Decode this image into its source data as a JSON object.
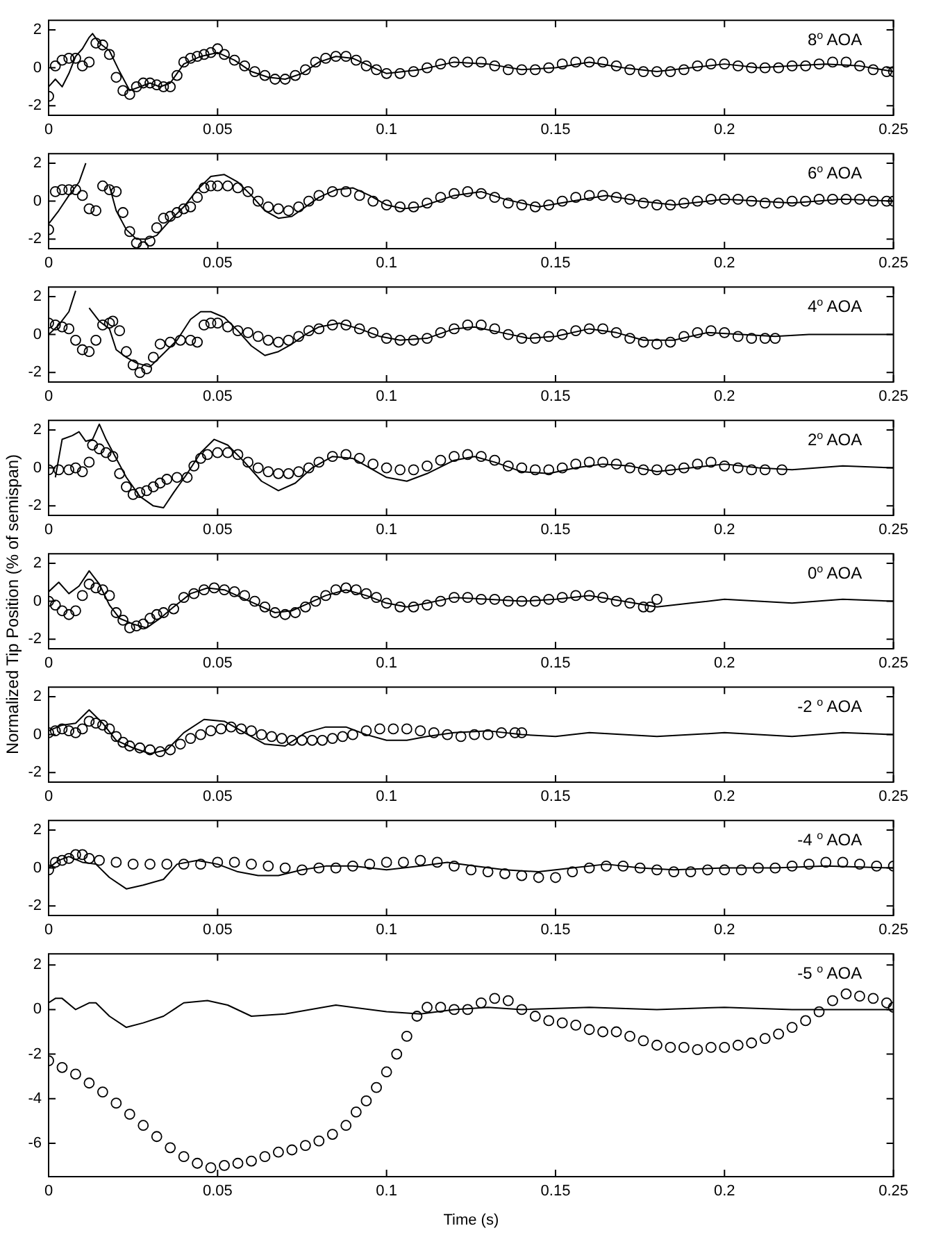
{
  "chart_data": [
    {
      "type": "line",
      "annotations": [
        "8$^{o}$ AOA"
      ],
      "xlim": [
        0,
        0.25
      ],
      "xticks": [
        0,
        0.05,
        0.1,
        0.15,
        0.2,
        0.25
      ],
      "ylim": [
        -2.5,
        2.5
      ],
      "yticks": [
        -2,
        0,
        2
      ],
      "series": [
        {
          "type": "line",
          "color": "#000000",
          "marker": "none",
          "line_style": "solid",
          "x": [
            0,
            0.002,
            0.004,
            0.006,
            0.008,
            0.01,
            0.012,
            0.013,
            0.015,
            0.018,
            0.021,
            0.024,
            0.027,
            0.03,
            0.033,
            0.036,
            0.04,
            0.045,
            0.05,
            0.055,
            0.06,
            0.065,
            0.07,
            0.075,
            0.08,
            0.085,
            0.09,
            0.095,
            0.1,
            0.11,
            0.12,
            0.13,
            0.14,
            0.15,
            0.16,
            0.17,
            0.18,
            0.19,
            0.2,
            0.21,
            0.22,
            0.23,
            0.24,
            0.25
          ],
          "values": [
            -1.0,
            -0.6,
            -1.0,
            -0.3,
            0.6,
            1.0,
            1.6,
            1.8,
            1.3,
            0.9,
            -0.2,
            -1.2,
            -1.0,
            -0.8,
            -1.0,
            -0.8,
            0.2,
            0.6,
            0.8,
            0.4,
            -0.2,
            -0.5,
            -0.6,
            -0.3,
            0.3,
            0.6,
            0.5,
            0.1,
            -0.3,
            -0.1,
            0.3,
            0.2,
            -0.1,
            0,
            0.3,
            0,
            -0.2,
            0,
            0.2,
            0,
            0.1,
            0.2,
            0.1,
            -0.2
          ]
        },
        {
          "type": "scatter",
          "color": "#000000",
          "marker": "circle",
          "x": [
            0,
            0.002,
            0.004,
            0.006,
            0.008,
            0.01,
            0.012,
            0.014,
            0.016,
            0.018,
            0.02,
            0.022,
            0.024,
            0.026,
            0.028,
            0.03,
            0.032,
            0.034,
            0.036,
            0.038,
            0.04,
            0.042,
            0.044,
            0.046,
            0.048,
            0.05,
            0.052,
            0.055,
            0.058,
            0.061,
            0.064,
            0.067,
            0.07,
            0.073,
            0.076,
            0.079,
            0.082,
            0.085,
            0.088,
            0.091,
            0.094,
            0.097,
            0.1,
            0.104,
            0.108,
            0.112,
            0.116,
            0.12,
            0.124,
            0.128,
            0.132,
            0.136,
            0.14,
            0.144,
            0.148,
            0.152,
            0.156,
            0.16,
            0.164,
            0.168,
            0.172,
            0.176,
            0.18,
            0.184,
            0.188,
            0.192,
            0.196,
            0.2,
            0.204,
            0.208,
            0.212,
            0.216,
            0.22,
            0.224,
            0.228,
            0.232,
            0.236,
            0.24,
            0.244,
            0.248,
            0.25
          ],
          "values": [
            -1.5,
            0.1,
            0.4,
            0.5,
            0.5,
            0.1,
            0.3,
            1.3,
            1.2,
            0.7,
            -0.5,
            -1.2,
            -1.4,
            -1.0,
            -0.8,
            -0.8,
            -0.9,
            -1.0,
            -1.0,
            -0.4,
            0.3,
            0.5,
            0.6,
            0.7,
            0.8,
            1.0,
            0.7,
            0.4,
            0.1,
            -0.2,
            -0.4,
            -0.6,
            -0.6,
            -0.4,
            -0.1,
            0.3,
            0.5,
            0.6,
            0.6,
            0.4,
            0.1,
            -0.1,
            -0.3,
            -0.3,
            -0.2,
            0,
            0.2,
            0.3,
            0.3,
            0.3,
            0.1,
            -0.1,
            -0.1,
            -0.1,
            0,
            0.2,
            0.3,
            0.3,
            0.3,
            0.1,
            -0.1,
            -0.2,
            -0.2,
            -0.2,
            -0.1,
            0.1,
            0.2,
            0.2,
            0.1,
            0,
            0,
            0,
            0.1,
            0.1,
            0.2,
            0.3,
            0.3,
            0.1,
            -0.1,
            -0.2,
            -0.2
          ]
        }
      ]
    },
    {
      "type": "line",
      "annotations": [
        "6$^{o}$ AOA"
      ],
      "xlim": [
        0,
        0.25
      ],
      "xticks": [
        0,
        0.05,
        0.1,
        0.15,
        0.2,
        0.25
      ],
      "ylim": [
        -2.5,
        2.5
      ],
      "yticks": [
        -2,
        0,
        2
      ],
      "series": [
        {
          "type": "line",
          "color": "#000000",
          "marker": "none",
          "line_style": "solid",
          "x": [
            0,
            0.003,
            0.006,
            0.009,
            0.011,
            0.012,
            0.016,
            0.018,
            0.02,
            0.023,
            0.026,
            0.029,
            0.032,
            0.036,
            0.04,
            0.044,
            0.048,
            0.052,
            0.056,
            0.06,
            0.064,
            0.068,
            0.072,
            0.076,
            0.08,
            0.085,
            0.09,
            0.095,
            0.1,
            0.105,
            0.11,
            0.12,
            0.128,
            0.135,
            0.145,
            0.155,
            0.165,
            0.175,
            0.185,
            0.2,
            0.21,
            0.22,
            0.235,
            0.25
          ],
          "values": [
            -1.2,
            -0.5,
            0.3,
            1.0,
            2.0,
            null,
            null,
            0.8,
            -0.5,
            -1.5,
            -2.0,
            -2.0,
            -1.8,
            -1.0,
            -0.3,
            0.6,
            1.3,
            1.4,
            1.0,
            0.3,
            -0.5,
            -0.9,
            -0.8,
            -0.3,
            0.2,
            0.6,
            0.7,
            0.3,
            -0.2,
            -0.4,
            -0.3,
            0.3,
            0.5,
            0.1,
            -0.3,
            0,
            0.3,
            0,
            -0.2,
            0.1,
            0,
            -0.1,
            0.1,
            0
          ]
        },
        {
          "type": "scatter",
          "color": "#000000",
          "marker": "circle",
          "x": [
            0,
            0.002,
            0.004,
            0.006,
            0.008,
            0.01,
            0.012,
            0.014,
            0.016,
            0.018,
            0.02,
            0.022,
            0.024,
            0.026,
            0.028,
            0.03,
            0.032,
            0.034,
            0.036,
            0.038,
            0.04,
            0.042,
            0.044,
            0.046,
            0.048,
            0.05,
            0.053,
            0.056,
            0.059,
            0.062,
            0.065,
            0.068,
            0.071,
            0.074,
            0.077,
            0.08,
            0.084,
            0.088,
            0.092,
            0.096,
            0.1,
            0.104,
            0.108,
            0.112,
            0.116,
            0.12,
            0.124,
            0.128,
            0.132,
            0.136,
            0.14,
            0.144,
            0.148,
            0.152,
            0.156,
            0.16,
            0.164,
            0.168,
            0.172,
            0.176,
            0.18,
            0.184,
            0.188,
            0.192,
            0.196,
            0.2,
            0.204,
            0.208,
            0.212,
            0.216,
            0.22,
            0.224,
            0.228,
            0.232,
            0.236,
            0.24,
            0.244,
            0.248,
            0.25
          ],
          "values": [
            -1.5,
            0.5,
            0.6,
            0.6,
            0.6,
            0.3,
            -0.4,
            -0.5,
            0.8,
            0.6,
            0.5,
            -0.6,
            -1.6,
            -2.2,
            -2.4,
            -2.1,
            -1.4,
            -0.9,
            -0.8,
            -0.6,
            -0.4,
            -0.3,
            0.2,
            0.7,
            0.8,
            0.8,
            0.8,
            0.7,
            0.5,
            0,
            -0.3,
            -0.4,
            -0.5,
            -0.3,
            0,
            0.3,
            0.5,
            0.5,
            0.3,
            0,
            -0.2,
            -0.3,
            -0.3,
            -0.1,
            0.2,
            0.4,
            0.5,
            0.4,
            0.2,
            -0.1,
            -0.2,
            -0.3,
            -0.2,
            0,
            0.2,
            0.3,
            0.3,
            0.2,
            0.1,
            -0.1,
            -0.2,
            -0.2,
            -0.1,
            0,
            0.1,
            0.1,
            0.1,
            0,
            -0.1,
            -0.1,
            0,
            0,
            0.1,
            0.1,
            0.1,
            0.1,
            0,
            0,
            0
          ]
        }
      ]
    },
    {
      "type": "line",
      "annotations": [
        "4$^{o}$ AOA"
      ],
      "xlim": [
        0,
        0.25
      ],
      "xticks": [
        0,
        0.05,
        0.1,
        0.15,
        0.2,
        0.25
      ],
      "ylim": [
        -2.5,
        2.5
      ],
      "yticks": [
        -2,
        0,
        2
      ],
      "series": [
        {
          "type": "line",
          "color": "#000000",
          "marker": "none",
          "line_style": "solid",
          "x": [
            0,
            0.003,
            0.006,
            0.008,
            0.01,
            0.012,
            0.015,
            0.018,
            0.02,
            0.023,
            0.026,
            0.03,
            0.034,
            0.038,
            0.042,
            0.045,
            0.048,
            0.052,
            0.056,
            0.06,
            0.064,
            0.068,
            0.072,
            0.076,
            0.08,
            0.086,
            0.092,
            0.098,
            0.104,
            0.112,
            0.12,
            0.126,
            0.134,
            0.142,
            0.15,
            0.16,
            0.168,
            0.176,
            0.185,
            0.195,
            0.205,
            0.215,
            0.225,
            0.235,
            0.25
          ],
          "values": [
            0,
            0.5,
            1.2,
            2.3,
            null,
            1.4,
            0.7,
            0.3,
            -0.8,
            -1.2,
            -1.5,
            -1.7,
            -1.0,
            -0.3,
            0.8,
            1.2,
            1.2,
            0.9,
            0.2,
            -0.6,
            -1.1,
            -0.9,
            -0.5,
            0,
            0.4,
            0.6,
            0.3,
            -0.1,
            -0.3,
            -0.2,
            0.3,
            0.4,
            0.1,
            -0.2,
            -0.1,
            0.3,
            0.1,
            -0.3,
            -0.3,
            0.1,
            0,
            -0.1,
            0,
            0,
            0
          ]
        },
        {
          "type": "scatter",
          "color": "#000000",
          "marker": "circle",
          "x": [
            0,
            0.002,
            0.004,
            0.006,
            0.008,
            0.01,
            0.012,
            0.014,
            0.016,
            0.018,
            0.019,
            0.021,
            0.023,
            0.025,
            0.027,
            0.029,
            0.031,
            0.033,
            0.036,
            0.039,
            0.042,
            0.044,
            0.046,
            0.048,
            0.05,
            0.053,
            0.056,
            0.059,
            0.062,
            0.065,
            0.068,
            0.071,
            0.074,
            0.077,
            0.08,
            0.084,
            0.088,
            0.092,
            0.096,
            0.1,
            0.104,
            0.108,
            0.112,
            0.116,
            0.12,
            0.124,
            0.128,
            0.132,
            0.136,
            0.14,
            0.144,
            0.148,
            0.152,
            0.156,
            0.16,
            0.164,
            0.168,
            0.172,
            0.176,
            0.18,
            0.184,
            0.188,
            0.192,
            0.196,
            0.2,
            0.204,
            0.208,
            0.212,
            0.215
          ],
          "values": [
            0.6,
            0.5,
            0.4,
            0.3,
            -0.3,
            -0.8,
            -0.9,
            -0.3,
            0.5,
            0.6,
            0.7,
            0.2,
            -0.9,
            -1.6,
            -2.0,
            -1.8,
            -1.2,
            -0.5,
            -0.4,
            -0.3,
            -0.3,
            -0.4,
            0.5,
            0.6,
            0.6,
            0.4,
            0.2,
            0.1,
            -0.1,
            -0.3,
            -0.4,
            -0.3,
            -0.1,
            0.2,
            0.3,
            0.5,
            0.5,
            0.3,
            0.1,
            -0.2,
            -0.3,
            -0.3,
            -0.2,
            0.1,
            0.3,
            0.5,
            0.5,
            0.3,
            0,
            -0.2,
            -0.2,
            -0.1,
            0,
            0.2,
            0.3,
            0.3,
            0.1,
            -0.2,
            -0.4,
            -0.5,
            -0.4,
            -0.1,
            0.1,
            0.2,
            0.1,
            -0.1,
            -0.2,
            -0.2,
            -0.2
          ]
        }
      ]
    },
    {
      "type": "line",
      "annotations": [
        "2$^{o}$ AOA"
      ],
      "xlim": [
        0,
        0.25
      ],
      "xticks": [
        0,
        0.05,
        0.1,
        0.15,
        0.2,
        0.25
      ],
      "ylim": [
        -2.5,
        2.5
      ],
      "yticks": [
        -2,
        0,
        2
      ],
      "series": [
        {
          "type": "line",
          "color": "#000000",
          "marker": "none",
          "line_style": "solid",
          "x": [
            0.002,
            0.004,
            0.007,
            0.009,
            0.011,
            0.013,
            0.015,
            0.017,
            0.02,
            0.023,
            0.027,
            0.031,
            0.034,
            0.037,
            0.041,
            0.045,
            0.049,
            0.053,
            0.058,
            0.063,
            0.068,
            0.073,
            0.078,
            0.084,
            0.09,
            0.096,
            0.1,
            0.106,
            0.112,
            0.12,
            0.126,
            0.132,
            0.14,
            0.148,
            0.156,
            0.164,
            0.172,
            0.18,
            0.19,
            0.2,
            0.21,
            0.22,
            0.235,
            0.25
          ],
          "values": [
            -0.5,
            1.5,
            1.7,
            1.9,
            1.4,
            1.5,
            2.3,
            1.5,
            0.5,
            -0.5,
            -1.5,
            -2.0,
            -2.1,
            -1.3,
            -0.3,
            0.8,
            1.5,
            1.2,
            0.3,
            -0.7,
            -1.2,
            -0.8,
            0,
            0.6,
            0.5,
            -0.1,
            -0.5,
            -0.7,
            -0.3,
            0.4,
            0.6,
            0.3,
            -0.2,
            -0.3,
            0,
            0.2,
            0.1,
            -0.2,
            0,
            0.2,
            0,
            -0.1,
            0.1,
            0
          ]
        },
        {
          "type": "scatter",
          "color": "#000000",
          "marker": "circle",
          "x": [
            0,
            0.003,
            0.006,
            0.008,
            0.01,
            0.012,
            0.013,
            0.015,
            0.017,
            0.019,
            0.021,
            0.023,
            0.025,
            0.027,
            0.029,
            0.031,
            0.033,
            0.035,
            0.038,
            0.041,
            0.043,
            0.045,
            0.047,
            0.05,
            0.053,
            0.056,
            0.059,
            0.062,
            0.065,
            0.068,
            0.071,
            0.074,
            0.077,
            0.08,
            0.084,
            0.088,
            0.092,
            0.096,
            0.1,
            0.104,
            0.108,
            0.112,
            0.116,
            0.12,
            0.124,
            0.128,
            0.132,
            0.136,
            0.14,
            0.144,
            0.148,
            0.152,
            0.156,
            0.16,
            0.164,
            0.168,
            0.172,
            0.176,
            0.18,
            0.184,
            0.188,
            0.192,
            0.196,
            0.2,
            0.204,
            0.208,
            0.212,
            0.217
          ],
          "values": [
            -0.1,
            -0.1,
            -0.1,
            0,
            -0.2,
            0.3,
            1.2,
            1.0,
            0.8,
            0.6,
            -0.3,
            -1.0,
            -1.4,
            -1.3,
            -1.2,
            -1.0,
            -0.8,
            -0.6,
            -0.5,
            -0.5,
            0.1,
            0.5,
            0.7,
            0.8,
            0.8,
            0.7,
            0.3,
            0,
            -0.2,
            -0.3,
            -0.3,
            -0.2,
            0,
            0.3,
            0.6,
            0.7,
            0.5,
            0.2,
            0,
            -0.1,
            -0.1,
            0.1,
            0.4,
            0.6,
            0.7,
            0.6,
            0.4,
            0.1,
            0,
            -0.1,
            -0.1,
            0,
            0.2,
            0.3,
            0.3,
            0.2,
            0,
            -0.1,
            -0.1,
            -0.1,
            0,
            0.2,
            0.3,
            0.1,
            0,
            -0.1,
            -0.1,
            -0.1
          ]
        }
      ]
    },
    {
      "type": "line",
      "annotations": [
        "0$^{o}$ AOA"
      ],
      "ylabel": "Normalized Tip Position (% of semispan)",
      "xlim": [
        0,
        0.25
      ],
      "xticks": [
        0,
        0.05,
        0.1,
        0.15,
        0.2,
        0.25
      ],
      "ylim": [
        -2.5,
        2.5
      ],
      "yticks": [
        -2,
        0,
        2
      ],
      "series": [
        {
          "type": "line",
          "color": "#000000",
          "marker": "none",
          "line_style": "solid",
          "x": [
            0,
            0.003,
            0.006,
            0.009,
            0.012,
            0.015,
            0.018,
            0.021,
            0.025,
            0.029,
            0.033,
            0.037,
            0.042,
            0.047,
            0.052,
            0.057,
            0.062,
            0.067,
            0.072,
            0.077,
            0.082,
            0.088,
            0.094,
            0.1,
            0.106,
            0.112,
            0.12,
            0.13,
            0.14,
            0.15,
            0.16,
            0.17,
            0.18,
            0.19,
            0.2,
            0.21,
            0.22,
            0.235,
            0.25
          ],
          "values": [
            0.5,
            1.0,
            0.4,
            0.8,
            1.6,
            0.9,
            -0.2,
            -0.9,
            -1.2,
            -1.4,
            -0.9,
            -0.3,
            0.4,
            0.7,
            0.6,
            0.2,
            -0.2,
            -0.6,
            -0.5,
            -0.1,
            0.3,
            0.6,
            0.3,
            -0.1,
            -0.3,
            -0.1,
            0.2,
            0.1,
            0,
            0.1,
            0.3,
            0,
            -0.3,
            -0.1,
            0.1,
            0,
            -0.1,
            0.1,
            0
          ]
        },
        {
          "type": "scatter",
          "color": "#000000",
          "marker": "circle",
          "x": [
            0,
            0.002,
            0.004,
            0.006,
            0.008,
            0.01,
            0.012,
            0.014,
            0.016,
            0.018,
            0.02,
            0.022,
            0.024,
            0.026,
            0.028,
            0.03,
            0.032,
            0.034,
            0.037,
            0.04,
            0.043,
            0.046,
            0.049,
            0.052,
            0.055,
            0.058,
            0.061,
            0.064,
            0.067,
            0.07,
            0.073,
            0.076,
            0.079,
            0.082,
            0.085,
            0.088,
            0.091,
            0.094,
            0.097,
            0.1,
            0.104,
            0.108,
            0.112,
            0.116,
            0.12,
            0.124,
            0.128,
            0.132,
            0.136,
            0.14,
            0.144,
            0.148,
            0.152,
            0.156,
            0.16,
            0.164,
            0.168,
            0.172,
            0.176,
            0.178,
            0.18
          ],
          "values": [
            0,
            -0.2,
            -0.5,
            -0.7,
            -0.5,
            0.3,
            0.9,
            0.7,
            0.6,
            0.3,
            -0.6,
            -1.0,
            -1.4,
            -1.3,
            -1.2,
            -0.9,
            -0.7,
            -0.6,
            -0.4,
            0.2,
            0.4,
            0.6,
            0.7,
            0.6,
            0.5,
            0.3,
            0,
            -0.3,
            -0.6,
            -0.7,
            -0.6,
            -0.3,
            0,
            0.3,
            0.6,
            0.7,
            0.6,
            0.4,
            0.2,
            -0.1,
            -0.3,
            -0.3,
            -0.2,
            0,
            0.2,
            0.2,
            0.1,
            0.1,
            0,
            0,
            0,
            0.1,
            0.2,
            0.3,
            0.3,
            0.2,
            0,
            -0.1,
            -0.3,
            -0.3,
            0.1
          ]
        }
      ]
    },
    {
      "type": "line",
      "annotations": [
        "-2 $^{o}$ AOA"
      ],
      "xlim": [
        0,
        0.25
      ],
      "xticks": [
        0,
        0.05,
        0.1,
        0.15,
        0.2,
        0.25
      ],
      "ylim": [
        -2.5,
        2.5
      ],
      "yticks": [
        -2,
        0,
        2
      ],
      "series": [
        {
          "type": "line",
          "color": "#000000",
          "marker": "none",
          "line_style": "solid",
          "x": [
            0,
            0.004,
            0.008,
            0.012,
            0.016,
            0.02,
            0.025,
            0.03,
            0.035,
            0.04,
            0.046,
            0.052,
            0.058,
            0.064,
            0.07,
            0.076,
            0.082,
            0.088,
            0.094,
            0.1,
            0.106,
            0.112,
            0.12,
            0.13,
            0.14,
            0.15,
            0.16,
            0.17,
            0.18,
            0.2,
            0.22,
            0.235,
            0.25
          ],
          "values": [
            0.2,
            0.5,
            0.6,
            1.3,
            0.6,
            -0.3,
            -0.7,
            -1.0,
            -0.8,
            0.1,
            0.8,
            0.7,
            0.1,
            -0.5,
            -0.6,
            0.1,
            0.4,
            0.4,
            0,
            -0.3,
            -0.3,
            -0.1,
            0.1,
            0.2,
            0,
            -0.1,
            0.1,
            0,
            -0.1,
            0.1,
            -0.1,
            0.1,
            0
          ]
        },
        {
          "type": "scatter",
          "color": "#000000",
          "marker": "circle",
          "x": [
            0,
            0.002,
            0.004,
            0.006,
            0.008,
            0.01,
            0.012,
            0.014,
            0.016,
            0.018,
            0.02,
            0.022,
            0.024,
            0.027,
            0.03,
            0.033,
            0.036,
            0.039,
            0.042,
            0.045,
            0.048,
            0.051,
            0.054,
            0.057,
            0.06,
            0.063,
            0.066,
            0.069,
            0.072,
            0.075,
            0.078,
            0.081,
            0.084,
            0.087,
            0.09,
            0.094,
            0.098,
            0.102,
            0.106,
            0.11,
            0.114,
            0.118,
            0.122,
            0.126,
            0.13,
            0.134,
            0.138,
            0.14
          ],
          "values": [
            0.1,
            0.2,
            0.3,
            0.2,
            0.1,
            0.3,
            0.7,
            0.6,
            0.5,
            0.3,
            -0.1,
            -0.4,
            -0.6,
            -0.7,
            -0.8,
            -0.9,
            -0.8,
            -0.5,
            -0.2,
            0,
            0.2,
            0.3,
            0.4,
            0.3,
            0.2,
            0,
            -0.1,
            -0.2,
            -0.3,
            -0.3,
            -0.3,
            -0.3,
            -0.2,
            -0.1,
            0,
            0.2,
            0.3,
            0.3,
            0.3,
            0.2,
            0.1,
            0,
            -0.1,
            0,
            0,
            0.1,
            0.1,
            0.1
          ]
        }
      ]
    },
    {
      "type": "line",
      "annotations": [
        "-4 $^{o}$ AOA"
      ],
      "xlim": [
        0,
        0.25
      ],
      "xticks": [
        0,
        0.05,
        0.1,
        0.15,
        0.2,
        0.25
      ],
      "ylim": [
        -2.5,
        2.5
      ],
      "yticks": [
        -2,
        0,
        2
      ],
      "series": [
        {
          "type": "line",
          "color": "#000000",
          "marker": "none",
          "line_style": "solid",
          "x": [
            0,
            0.003,
            0.006,
            0.01,
            0.014,
            0.018,
            0.023,
            0.028,
            0.034,
            0.038,
            0.044,
            0.05,
            0.056,
            0.062,
            0.068,
            0.075,
            0.082,
            0.09,
            0.1,
            0.11,
            0.118,
            0.126,
            0.135,
            0.145,
            0.155,
            0.165,
            0.175,
            0.185,
            0.2,
            0.215,
            0.23,
            0.25
          ],
          "values": [
            0,
            0.4,
            0.6,
            0.3,
            0.2,
            -0.5,
            -1.1,
            -0.9,
            -0.6,
            0.2,
            0.4,
            0.2,
            -0.2,
            -0.4,
            -0.4,
            -0.1,
            0.1,
            0.1,
            -0.1,
            0.1,
            0.3,
            0.1,
            -0.1,
            -0.2,
            0,
            0.2,
            0,
            -0.1,
            0,
            0,
            0.1,
            0
          ]
        },
        {
          "type": "scatter",
          "color": "#000000",
          "marker": "circle",
          "x": [
            0,
            0.002,
            0.004,
            0.006,
            0.008,
            0.01,
            0.012,
            0.015,
            0.02,
            0.025,
            0.03,
            0.035,
            0.04,
            0.045,
            0.05,
            0.055,
            0.06,
            0.065,
            0.07,
            0.075,
            0.08,
            0.085,
            0.09,
            0.095,
            0.1,
            0.105,
            0.11,
            0.115,
            0.12,
            0.125,
            0.13,
            0.135,
            0.14,
            0.145,
            0.15,
            0.155,
            0.16,
            0.165,
            0.17,
            0.175,
            0.18,
            0.185,
            0.19,
            0.195,
            0.2,
            0.205,
            0.21,
            0.215,
            0.22,
            0.225,
            0.23,
            0.235,
            0.24,
            0.245,
            0.25
          ],
          "values": [
            -0.1,
            0.3,
            0.4,
            0.5,
            0.7,
            0.7,
            0.5,
            0.4,
            0.3,
            0.2,
            0.2,
            0.2,
            0.2,
            0.2,
            0.3,
            0.3,
            0.2,
            0.1,
            0,
            -0.1,
            0,
            0,
            0.1,
            0.2,
            0.3,
            0.3,
            0.4,
            0.3,
            0.1,
            -0.1,
            -0.2,
            -0.3,
            -0.4,
            -0.5,
            -0.5,
            -0.2,
            0,
            0.1,
            0.1,
            0,
            -0.1,
            -0.2,
            -0.2,
            -0.1,
            -0.1,
            -0.1,
            0,
            0,
            0.1,
            0.2,
            0.3,
            0.3,
            0.2,
            0.1,
            0.1
          ]
        }
      ]
    },
    {
      "type": "line",
      "annotations": [
        "-5 $^{o}$ AOA"
      ],
      "xlabel": "Time (s)",
      "xlim": [
        0,
        0.25
      ],
      "xticks": [
        0,
        0.05,
        0.1,
        0.15,
        0.2,
        0.25
      ],
      "ylim": [
        -7.5,
        2.5
      ],
      "yticks": [
        -6,
        -4,
        -2,
        0,
        2
      ],
      "series": [
        {
          "type": "line",
          "color": "#000000",
          "marker": "none",
          "line_style": "solid",
          "x": [
            0,
            0.002,
            0.004,
            0.008,
            0.012,
            0.014,
            0.018,
            0.023,
            0.028,
            0.034,
            0.04,
            0.047,
            0.053,
            0.06,
            0.07,
            0.085,
            0.1,
            0.11,
            0.12,
            0.13,
            0.14,
            0.16,
            0.18,
            0.2,
            0.22,
            0.25
          ],
          "values": [
            0.3,
            0.5,
            0.5,
            0,
            0.3,
            0.3,
            -0.3,
            -0.8,
            -0.6,
            -0.3,
            0.3,
            0.4,
            0.2,
            -0.3,
            -0.2,
            0.2,
            -0.1,
            -0.2,
            0,
            0.1,
            0,
            0.1,
            0,
            0.1,
            0,
            0
          ]
        },
        {
          "type": "scatter",
          "color": "#000000",
          "marker": "circle",
          "x": [
            0,
            0.004,
            0.008,
            0.012,
            0.016,
            0.02,
            0.024,
            0.028,
            0.032,
            0.036,
            0.04,
            0.044,
            0.048,
            0.052,
            0.056,
            0.06,
            0.064,
            0.068,
            0.072,
            0.076,
            0.08,
            0.084,
            0.088,
            0.091,
            0.094,
            0.097,
            0.1,
            0.103,
            0.106,
            0.109,
            0.112,
            0.116,
            0.12,
            0.124,
            0.128,
            0.132,
            0.136,
            0.14,
            0.144,
            0.148,
            0.152,
            0.156,
            0.16,
            0.164,
            0.168,
            0.172,
            0.176,
            0.18,
            0.184,
            0.188,
            0.192,
            0.196,
            0.2,
            0.204,
            0.208,
            0.212,
            0.216,
            0.22,
            0.224,
            0.228,
            0.232,
            0.236,
            0.24,
            0.244,
            0.248,
            0.25
          ],
          "values": [
            -2.3,
            -2.6,
            -2.9,
            -3.3,
            -3.7,
            -4.2,
            -4.7,
            -5.2,
            -5.7,
            -6.2,
            -6.6,
            -6.9,
            -7.1,
            -7.0,
            -6.9,
            -6.8,
            -6.6,
            -6.4,
            -6.3,
            -6.1,
            -5.9,
            -5.6,
            -5.2,
            -4.6,
            -4.1,
            -3.5,
            -2.8,
            -2.0,
            -1.2,
            -0.3,
            0.1,
            0.1,
            0,
            0,
            0.3,
            0.5,
            0.4,
            0,
            -0.3,
            -0.5,
            -0.6,
            -0.7,
            -0.9,
            -1.0,
            -1.0,
            -1.2,
            -1.4,
            -1.6,
            -1.7,
            -1.7,
            -1.8,
            -1.7,
            -1.7,
            -1.6,
            -1.5,
            -1.3,
            -1.1,
            -0.8,
            -0.5,
            -0.1,
            0.4,
            0.7,
            0.6,
            0.5,
            0.3,
            0.1
          ]
        }
      ]
    }
  ]
}
